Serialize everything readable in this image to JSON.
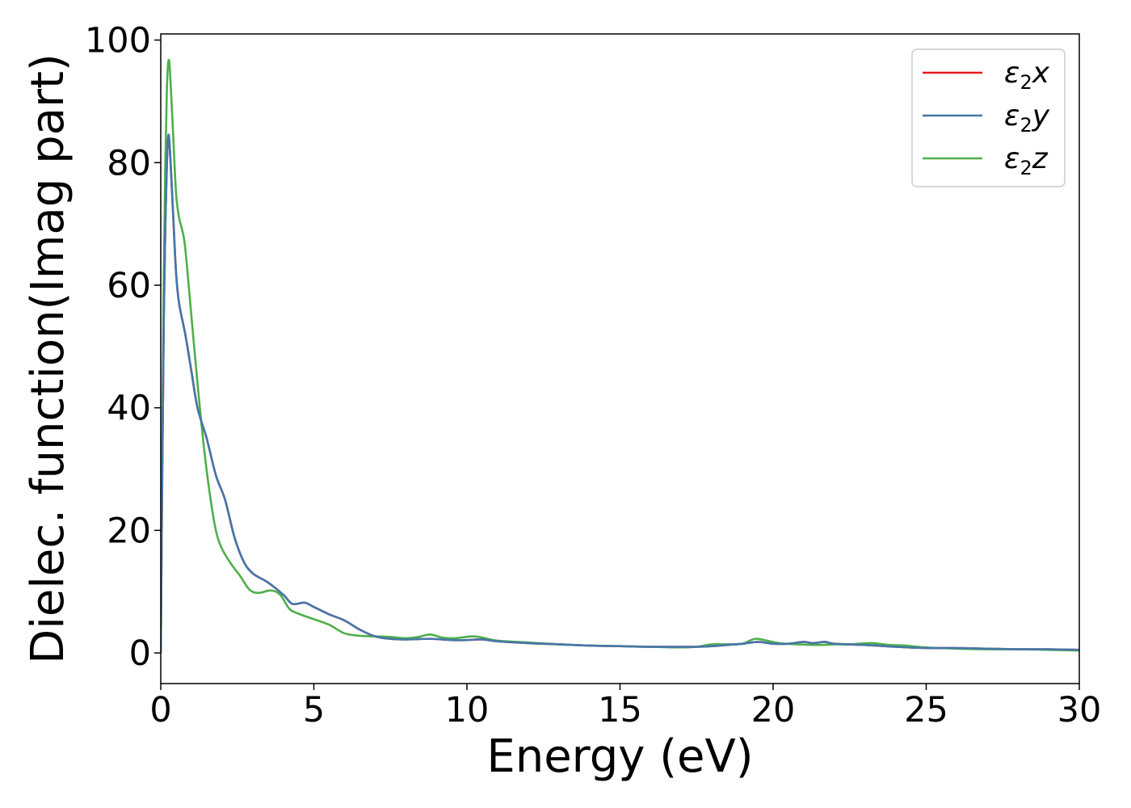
{
  "chart_data": {
    "type": "line",
    "title": "",
    "xlabel": "Energy (eV)",
    "ylabel": "Dielec. function(Imag part)",
    "xlim": [
      0,
      30
    ],
    "ylim": [
      -5,
      101
    ],
    "x_ticks": [
      0,
      5,
      10,
      15,
      20,
      25,
      30
    ],
    "y_ticks": [
      0,
      20,
      40,
      60,
      80,
      100
    ],
    "grid": false,
    "legend_position": "top-right",
    "series": [
      {
        "name": "ε2x",
        "legend_base": "ε",
        "legend_sub": "2",
        "legend_suffix": "x",
        "color": "#e41a1c",
        "points": [
          [
            0,
            0
          ],
          [
            0.05,
            30
          ],
          [
            0.1,
            55
          ],
          [
            0.15,
            70
          ],
          [
            0.2,
            80
          ],
          [
            0.25,
            84
          ],
          [
            0.3,
            82
          ],
          [
            0.4,
            72
          ],
          [
            0.5,
            62
          ],
          [
            0.6,
            57
          ],
          [
            0.8,
            52
          ],
          [
            1.0,
            46
          ],
          [
            1.2,
            40
          ],
          [
            1.5,
            35
          ],
          [
            1.8,
            29
          ],
          [
            2.1,
            25
          ],
          [
            2.4,
            19
          ],
          [
            2.7,
            15
          ],
          [
            3.0,
            13
          ],
          [
            3.5,
            11.5
          ],
          [
            4.0,
            9.5
          ],
          [
            4.3,
            8
          ],
          [
            4.7,
            8.2
          ],
          [
            5.0,
            7.5
          ],
          [
            5.5,
            6.3
          ],
          [
            6.0,
            5.3
          ],
          [
            6.5,
            3.8
          ],
          [
            7.0,
            2.7
          ],
          [
            7.5,
            2.3
          ],
          [
            8.0,
            2.2
          ],
          [
            8.8,
            2.3
          ],
          [
            9.5,
            2.1
          ],
          [
            10.0,
            2.1
          ],
          [
            10.5,
            2.2
          ],
          [
            11.0,
            1.9
          ],
          [
            12.0,
            1.6
          ],
          [
            13.0,
            1.4
          ],
          [
            14.0,
            1.2
          ],
          [
            15.0,
            1.1
          ],
          [
            16.0,
            1.0
          ],
          [
            17.0,
            1.0
          ],
          [
            17.5,
            1.0
          ],
          [
            18.0,
            1.1
          ],
          [
            18.5,
            1.3
          ],
          [
            19.0,
            1.5
          ],
          [
            19.5,
            1.8
          ],
          [
            20.0,
            1.5
          ],
          [
            20.5,
            1.5
          ],
          [
            21.0,
            1.8
          ],
          [
            21.3,
            1.6
          ],
          [
            21.7,
            1.8
          ],
          [
            22.0,
            1.5
          ],
          [
            23.0,
            1.3
          ],
          [
            24.0,
            1.0
          ],
          [
            25.0,
            0.8
          ],
          [
            26.0,
            0.8
          ],
          [
            27.0,
            0.7
          ],
          [
            28.0,
            0.6
          ],
          [
            29.0,
            0.6
          ],
          [
            30.0,
            0.5
          ]
        ]
      },
      {
        "name": "ε2y",
        "legend_base": "ε",
        "legend_sub": "2",
        "legend_suffix": "y",
        "color": "#4477aa",
        "points": [
          [
            0,
            0
          ],
          [
            0.05,
            30
          ],
          [
            0.1,
            55
          ],
          [
            0.15,
            70
          ],
          [
            0.2,
            80
          ],
          [
            0.25,
            84.5
          ],
          [
            0.3,
            82
          ],
          [
            0.4,
            72
          ],
          [
            0.5,
            62
          ],
          [
            0.6,
            57
          ],
          [
            0.8,
            52
          ],
          [
            1.0,
            46
          ],
          [
            1.2,
            40
          ],
          [
            1.5,
            35
          ],
          [
            1.8,
            29
          ],
          [
            2.1,
            25
          ],
          [
            2.4,
            19
          ],
          [
            2.7,
            15
          ],
          [
            3.0,
            13
          ],
          [
            3.5,
            11.5
          ],
          [
            4.0,
            9.5
          ],
          [
            4.3,
            8
          ],
          [
            4.7,
            8.2
          ],
          [
            5.0,
            7.5
          ],
          [
            5.5,
            6.3
          ],
          [
            6.0,
            5.3
          ],
          [
            6.5,
            3.8
          ],
          [
            7.0,
            2.7
          ],
          [
            7.5,
            2.3
          ],
          [
            8.0,
            2.2
          ],
          [
            8.8,
            2.3
          ],
          [
            9.5,
            2.1
          ],
          [
            10.0,
            2.1
          ],
          [
            10.5,
            2.2
          ],
          [
            11.0,
            1.9
          ],
          [
            12.0,
            1.6
          ],
          [
            13.0,
            1.4
          ],
          [
            14.0,
            1.2
          ],
          [
            15.0,
            1.1
          ],
          [
            16.0,
            1.0
          ],
          [
            17.0,
            1.0
          ],
          [
            17.5,
            1.0
          ],
          [
            18.0,
            1.1
          ],
          [
            18.5,
            1.3
          ],
          [
            19.0,
            1.5
          ],
          [
            19.5,
            1.8
          ],
          [
            20.0,
            1.5
          ],
          [
            20.5,
            1.5
          ],
          [
            21.0,
            1.8
          ],
          [
            21.3,
            1.6
          ],
          [
            21.7,
            1.8
          ],
          [
            22.0,
            1.5
          ],
          [
            23.0,
            1.3
          ],
          [
            24.0,
            1.0
          ],
          [
            25.0,
            0.8
          ],
          [
            26.0,
            0.8
          ],
          [
            27.0,
            0.7
          ],
          [
            28.0,
            0.6
          ],
          [
            29.0,
            0.6
          ],
          [
            30.0,
            0.5
          ]
        ]
      },
      {
        "name": "ε2z",
        "legend_base": "ε",
        "legend_sub": "2",
        "legend_suffix": "z",
        "color": "#4daf4a",
        "points": [
          [
            0,
            0
          ],
          [
            0.05,
            35
          ],
          [
            0.1,
            62
          ],
          [
            0.15,
            80
          ],
          [
            0.2,
            92
          ],
          [
            0.25,
            96.5
          ],
          [
            0.3,
            95
          ],
          [
            0.4,
            85
          ],
          [
            0.5,
            75
          ],
          [
            0.6,
            71
          ],
          [
            0.7,
            69
          ],
          [
            0.8,
            66
          ],
          [
            1.0,
            55
          ],
          [
            1.2,
            44
          ],
          [
            1.4,
            34
          ],
          [
            1.6,
            26
          ],
          [
            1.8,
            20
          ],
          [
            2.0,
            17
          ],
          [
            2.3,
            14.5
          ],
          [
            2.6,
            12.5
          ],
          [
            2.9,
            10.3
          ],
          [
            3.2,
            9.8
          ],
          [
            3.6,
            10.2
          ],
          [
            3.9,
            9.5
          ],
          [
            4.2,
            7.2
          ],
          [
            4.5,
            6.4
          ],
          [
            5.0,
            5.5
          ],
          [
            5.5,
            4.6
          ],
          [
            6.0,
            3.2
          ],
          [
            6.5,
            2.8
          ],
          [
            7.0,
            2.7
          ],
          [
            7.5,
            2.6
          ],
          [
            8.0,
            2.4
          ],
          [
            8.4,
            2.6
          ],
          [
            8.8,
            3.0
          ],
          [
            9.2,
            2.5
          ],
          [
            9.6,
            2.4
          ],
          [
            10.2,
            2.7
          ],
          [
            10.6,
            2.4
          ],
          [
            11.0,
            2.0
          ],
          [
            12.0,
            1.7
          ],
          [
            13.0,
            1.4
          ],
          [
            14.0,
            1.2
          ],
          [
            15.0,
            1.1
          ],
          [
            16.0,
            1.0
          ],
          [
            17.0,
            0.9
          ],
          [
            17.5,
            1.0
          ],
          [
            18.0,
            1.4
          ],
          [
            18.5,
            1.4
          ],
          [
            19.0,
            1.5
          ],
          [
            19.4,
            2.3
          ],
          [
            19.8,
            2.0
          ],
          [
            20.2,
            1.6
          ],
          [
            20.8,
            1.4
          ],
          [
            21.5,
            1.3
          ],
          [
            22.0,
            1.4
          ],
          [
            22.5,
            1.4
          ],
          [
            23.2,
            1.6
          ],
          [
            23.8,
            1.3
          ],
          [
            24.3,
            1.2
          ],
          [
            25.0,
            0.9
          ],
          [
            26.0,
            0.7
          ],
          [
            27.0,
            0.6
          ],
          [
            28.0,
            0.6
          ],
          [
            29.0,
            0.5
          ],
          [
            30.0,
            0.4
          ]
        ]
      }
    ]
  }
}
